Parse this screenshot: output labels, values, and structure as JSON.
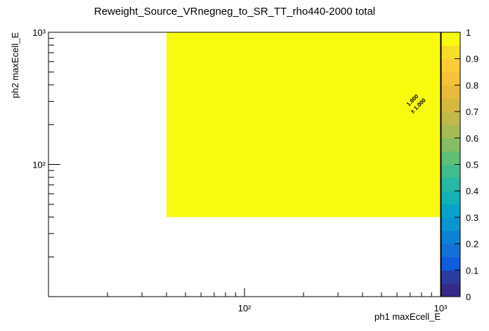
{
  "chart_data": {
    "type": "heatmap",
    "title": "Reweight_Source_VRnegneg_to_SR_TT_rho440-2000 total",
    "x_label": "ph1 maxEcell_E",
    "y_label": "ph2 maxEcell_E",
    "x_edges": [
      40,
      1000
    ],
    "y_edges": [
      40,
      1000
    ],
    "values": [
      [
        1
      ]
    ],
    "value_labels": [
      [
        "1.000"
      ]
    ],
    "errors": [
      [
        1
      ]
    ],
    "error_labels": [
      [
        "± 1.000"
      ]
    ],
    "xlim": [
      10,
      1000
    ],
    "ylim": [
      10,
      1000
    ],
    "log_x": true,
    "log_y": true,
    "xticks": [
      {
        "value": 100,
        "label": "10²"
      },
      {
        "value": 1000,
        "label": "10³"
      }
    ],
    "yticks": [
      {
        "value": 100,
        "label": "10²"
      },
      {
        "value": 1000,
        "label": "10³"
      }
    ],
    "xminorticks": [
      20,
      30,
      40,
      50,
      60,
      70,
      80,
      90,
      200,
      300,
      400,
      500,
      600,
      700,
      800,
      900
    ],
    "yminorticks": [
      20,
      30,
      40,
      50,
      60,
      70,
      80,
      90,
      200,
      300,
      400,
      500,
      600,
      700,
      800,
      900
    ],
    "zlim": [
      0,
      1
    ],
    "zticks": [
      0,
      0.1,
      0.2,
      0.3,
      0.4,
      0.5,
      0.6,
      0.7,
      0.8,
      0.9,
      1
    ],
    "palette": [
      "#352a87",
      "#2a3d9f",
      "#0f5cdd",
      "#1470d6",
      "#0d81d3",
      "#0996cf",
      "#06a4ca",
      "#15b1b9",
      "#28b8a5",
      "#40bd8e",
      "#60bf77",
      "#86bd66",
      "#a7bc56",
      "#c0bb4a",
      "#d6b940",
      "#e8bb3a",
      "#f7c23a",
      "#fccd35",
      "#f7de28",
      "#f9fb0e"
    ]
  }
}
